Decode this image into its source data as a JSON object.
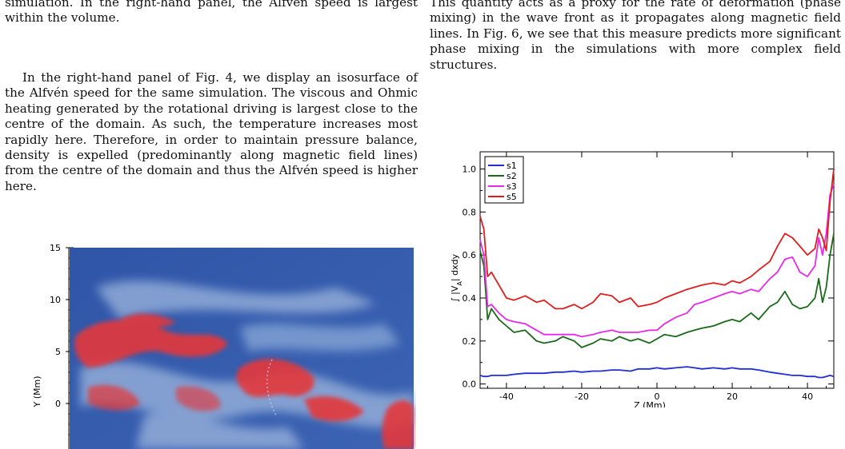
{
  "left_column": {
    "top_paragraph": "simulation. In the right-hand panel, the Alfvén speed is largest within the volume.",
    "main_paragraph": "In the right-hand panel of Fig. 4, we display an isosurface of the Alfvén speed for the same simulation. The viscous and Ohmic heating generated by the rotational driving is largest close to the centre of the domain. As such, the temperature increases most rapidly here. Therefore, in order to maintain pressure balance, density is expelled (predominantly along magnetic field lines) from the centre of the domain and thus the Alfvén speed is higher here."
  },
  "right_column": {
    "top_paragraph": "This quantity acts as a proxy for the rate of deformation (phase mixing) in the wave front as it propagates along magnetic field lines. In Fig. 6, we see that this measure predicts more significant phase mixing in the simulations with more complex field structures."
  },
  "image_figure": {
    "ylabel": "Y (Mm)",
    "yticks": [
      "15",
      "10",
      "5",
      "0"
    ],
    "colors": {
      "background": "#3a5fae",
      "highlight": "#e4393a",
      "light": "#9db6dd"
    }
  },
  "chart_data": {
    "type": "line",
    "xlabel": "Z (Mm)",
    "ylabel": "∫ |V_A| dxdy",
    "xlim": [
      -47,
      47
    ],
    "ylim": [
      -0.02,
      1.08
    ],
    "xticks": [
      "-40",
      "-20",
      "0",
      "20",
      "40"
    ],
    "yticks": [
      "0.0",
      "0.2",
      "0.4",
      "0.6",
      "0.8",
      "1.0"
    ],
    "legend_position": "top-left",
    "x": [
      -47,
      -46,
      -45,
      -44,
      -42,
      -40,
      -38,
      -35,
      -32,
      -30,
      -27,
      -25,
      -22,
      -20,
      -17,
      -15,
      -12,
      -10,
      -7,
      -5,
      -2,
      0,
      2,
      5,
      8,
      10,
      12,
      15,
      18,
      20,
      22,
      25,
      27,
      30,
      32,
      34,
      36,
      38,
      40,
      42,
      43,
      44,
      45,
      46,
      47
    ],
    "series": [
      {
        "name": "s1",
        "color": "#1f2fd1",
        "values": [
          0.04,
          0.035,
          0.035,
          0.04,
          0.04,
          0.04,
          0.045,
          0.05,
          0.05,
          0.05,
          0.055,
          0.055,
          0.06,
          0.055,
          0.06,
          0.06,
          0.065,
          0.065,
          0.06,
          0.07,
          0.07,
          0.075,
          0.07,
          0.075,
          0.08,
          0.075,
          0.07,
          0.075,
          0.07,
          0.075,
          0.07,
          0.07,
          0.065,
          0.055,
          0.05,
          0.045,
          0.04,
          0.04,
          0.035,
          0.035,
          0.03,
          0.03,
          0.035,
          0.04,
          0.035
        ]
      },
      {
        "name": "s2",
        "color": "#1a6a1a",
        "values": [
          0.62,
          0.55,
          0.3,
          0.35,
          0.3,
          0.27,
          0.24,
          0.25,
          0.2,
          0.19,
          0.2,
          0.22,
          0.2,
          0.17,
          0.19,
          0.21,
          0.2,
          0.22,
          0.2,
          0.21,
          0.19,
          0.21,
          0.23,
          0.22,
          0.24,
          0.25,
          0.26,
          0.27,
          0.29,
          0.3,
          0.29,
          0.33,
          0.3,
          0.36,
          0.38,
          0.43,
          0.37,
          0.35,
          0.36,
          0.4,
          0.49,
          0.38,
          0.45,
          0.6,
          0.7
        ]
      },
      {
        "name": "s3",
        "color": "#e62ae6",
        "values": [
          0.67,
          0.6,
          0.36,
          0.37,
          0.33,
          0.3,
          0.29,
          0.28,
          0.25,
          0.23,
          0.23,
          0.23,
          0.23,
          0.22,
          0.23,
          0.24,
          0.25,
          0.24,
          0.24,
          0.24,
          0.25,
          0.25,
          0.28,
          0.31,
          0.33,
          0.37,
          0.38,
          0.4,
          0.42,
          0.43,
          0.42,
          0.44,
          0.43,
          0.49,
          0.52,
          0.58,
          0.59,
          0.52,
          0.5,
          0.55,
          0.68,
          0.6,
          0.7,
          0.88,
          0.93
        ]
      },
      {
        "name": "s5",
        "color": "#e01e1e",
        "values": [
          0.78,
          0.72,
          0.5,
          0.52,
          0.46,
          0.4,
          0.39,
          0.41,
          0.38,
          0.39,
          0.35,
          0.35,
          0.37,
          0.35,
          0.38,
          0.42,
          0.41,
          0.38,
          0.4,
          0.36,
          0.37,
          0.38,
          0.4,
          0.42,
          0.44,
          0.45,
          0.46,
          0.47,
          0.46,
          0.48,
          0.47,
          0.5,
          0.53,
          0.57,
          0.64,
          0.7,
          0.68,
          0.64,
          0.6,
          0.63,
          0.72,
          0.68,
          0.62,
          0.85,
          1.0
        ]
      }
    ]
  }
}
